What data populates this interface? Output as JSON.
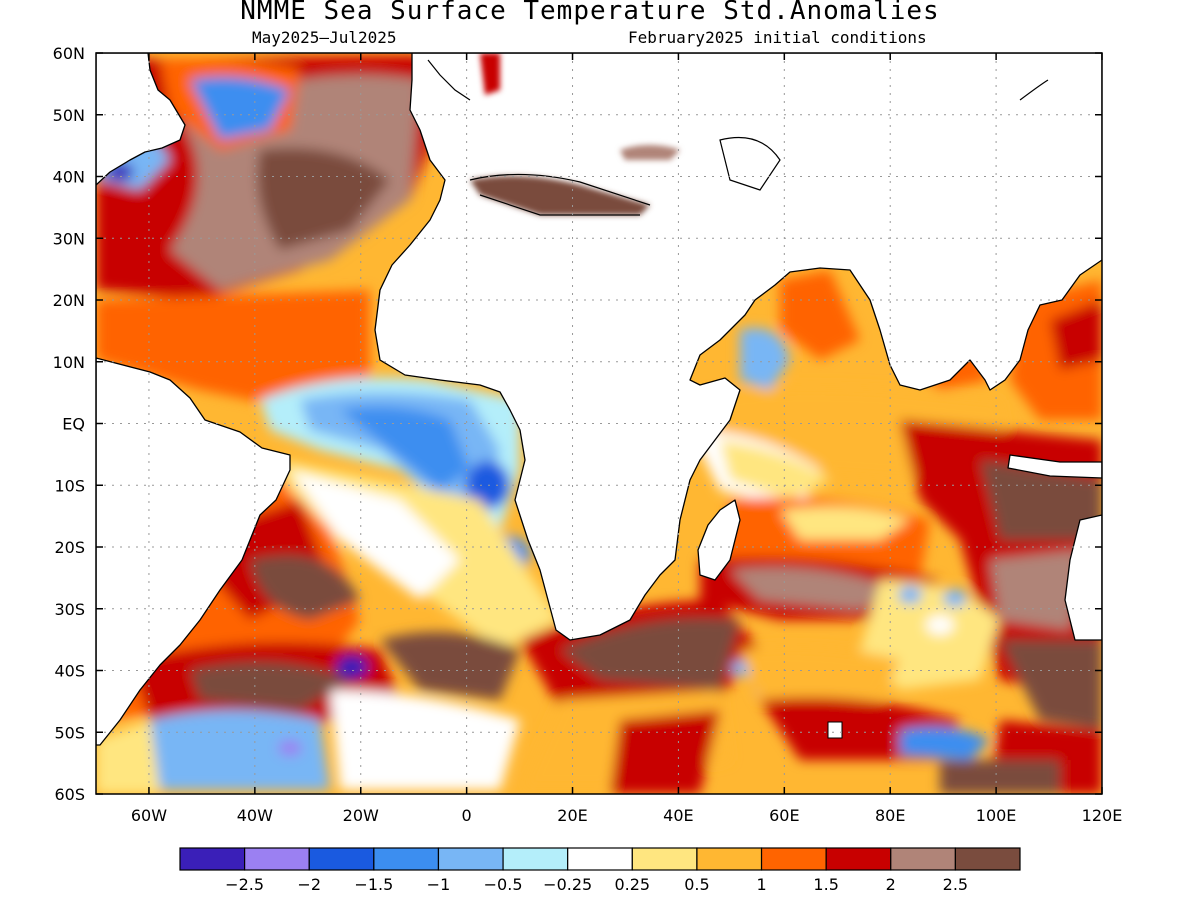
{
  "title": "NMME Sea Surface Temperature Std.Anomalies",
  "subtitle_left": "May2025–Jul2025",
  "subtitle_right": "February2025 initial conditions",
  "map": {
    "lon_range": [
      -70,
      120
    ],
    "lat_range": [
      -60,
      60
    ],
    "lon_ticks": [
      {
        "value": -60,
        "label": "60W"
      },
      {
        "value": -40,
        "label": "40W"
      },
      {
        "value": -20,
        "label": "20W"
      },
      {
        "value": 0,
        "label": "0"
      },
      {
        "value": 20,
        "label": "20E"
      },
      {
        "value": 40,
        "label": "40E"
      },
      {
        "value": 60,
        "label": "60E"
      },
      {
        "value": 80,
        "label": "80E"
      },
      {
        "value": 100,
        "label": "100E"
      },
      {
        "value": 120,
        "label": "120E"
      }
    ],
    "lat_ticks": [
      {
        "value": 60,
        "label": "60N"
      },
      {
        "value": 50,
        "label": "50N"
      },
      {
        "value": 40,
        "label": "40N"
      },
      {
        "value": 30,
        "label": "30N"
      },
      {
        "value": 20,
        "label": "20N"
      },
      {
        "value": 10,
        "label": "10N"
      },
      {
        "value": 0,
        "label": "EQ"
      },
      {
        "value": -10,
        "label": "10S"
      },
      {
        "value": -20,
        "label": "20S"
      },
      {
        "value": -30,
        "label": "30S"
      },
      {
        "value": -40,
        "label": "40S"
      },
      {
        "value": -50,
        "label": "50S"
      },
      {
        "value": -60,
        "label": "60S"
      }
    ],
    "gridlines": true
  },
  "colorbar": {
    "colors": [
      "#3a1fb8",
      "#9b80f2",
      "#1a5ae0",
      "#3c8ef0",
      "#78b6f5",
      "#b4eefa",
      "#ffffff",
      "#ffe680",
      "#ffb732",
      "#ff6400",
      "#c80000",
      "#b08478",
      "#7a4c3e"
    ],
    "labels": [
      "−2.5",
      "−2",
      "−1.5",
      "−1",
      "−0.5",
      "−0.25",
      "0.25",
      "0.5",
      "1",
      "1.5",
      "2",
      "2.5"
    ]
  },
  "land_color": "#ffffff",
  "coast_color": "#000000"
}
